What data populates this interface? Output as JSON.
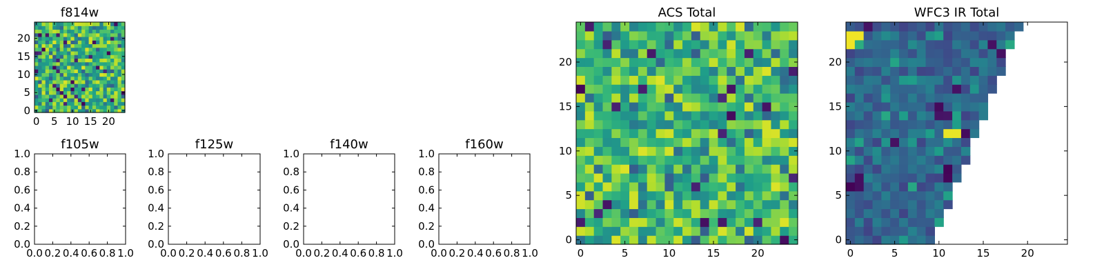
{
  "chart_data": [
    {
      "type": "heatmap",
      "title": "f814w",
      "colormap": "viridis",
      "grid_size": [
        25,
        25
      ],
      "origin": "lower",
      "xlim": [
        0,
        24
      ],
      "ylim": [
        0,
        24
      ],
      "xticks": [
        0,
        5,
        10,
        15,
        20
      ],
      "yticks": [
        0,
        5,
        10,
        15,
        20
      ],
      "xtick_labels": [
        "0",
        "5",
        "10",
        "15",
        "20"
      ],
      "ytick_labels": [
        "0",
        "5",
        "10",
        "15",
        "20"
      ],
      "values": []
    },
    {
      "type": "line",
      "title": "f105w",
      "series": [],
      "xlim": [
        0,
        1
      ],
      "ylim": [
        0,
        1
      ],
      "xtick_labels": [
        "0.0",
        "0.2",
        "0.4",
        "0.6",
        "0.8",
        "1.0"
      ],
      "ytick_labels": [
        "0.0",
        "0.2",
        "0.4",
        "0.6",
        "0.8",
        "1.0"
      ]
    },
    {
      "type": "line",
      "title": "f125w",
      "series": [],
      "xlim": [
        0,
        1
      ],
      "ylim": [
        0,
        1
      ],
      "xtick_labels": [
        "0.0",
        "0.2",
        "0.4",
        "0.6",
        "0.8",
        "1.0"
      ],
      "ytick_labels": [
        "0.0",
        "0.2",
        "0.4",
        "0.6",
        "0.8",
        "1.0"
      ]
    },
    {
      "type": "line",
      "title": "f140w",
      "series": [],
      "xlim": [
        0,
        1
      ],
      "ylim": [
        0,
        1
      ],
      "xtick_labels": [
        "0.0",
        "0.2",
        "0.4",
        "0.6",
        "0.8",
        "1.0"
      ],
      "ytick_labels": [
        "0.0",
        "0.2",
        "0.4",
        "0.6",
        "0.8",
        "1.0"
      ]
    },
    {
      "type": "line",
      "title": "f160w",
      "series": [],
      "xlim": [
        0,
        1
      ],
      "ylim": [
        0,
        1
      ],
      "xtick_labels": [
        "0.0",
        "0.2",
        "0.4",
        "0.6",
        "0.8",
        "1.0"
      ],
      "ytick_labels": [
        "0.0",
        "0.2",
        "0.4",
        "0.6",
        "0.8",
        "1.0"
      ]
    },
    {
      "type": "heatmap",
      "title": "ACS Total",
      "colormap": "viridis",
      "grid_size": [
        25,
        25
      ],
      "origin": "lower",
      "xlim": [
        0,
        24
      ],
      "ylim": [
        0,
        24
      ],
      "xticks": [
        0,
        5,
        10,
        15,
        20
      ],
      "yticks": [
        0,
        5,
        10,
        15,
        20
      ],
      "xtick_labels": [
        "0",
        "5",
        "10",
        "15",
        "20"
      ],
      "ytick_labels": [
        "0",
        "5",
        "10",
        "15",
        "20"
      ],
      "values": []
    },
    {
      "type": "heatmap",
      "title": "WFC3 IR Total",
      "colormap": "viridis",
      "grid_size": [
        25,
        25
      ],
      "origin": "lower",
      "masked": "upper-right triangle (blank)",
      "xlim": [
        0,
        24
      ],
      "ylim": [
        0,
        24
      ],
      "xticks": [
        0,
        5,
        10,
        15,
        20
      ],
      "yticks": [
        0,
        5,
        10,
        15,
        20
      ],
      "xtick_labels": [
        "0",
        "5",
        "10",
        "15",
        "20"
      ],
      "ytick_labels": [
        "0",
        "5",
        "10",
        "15",
        "20"
      ],
      "values": []
    }
  ]
}
